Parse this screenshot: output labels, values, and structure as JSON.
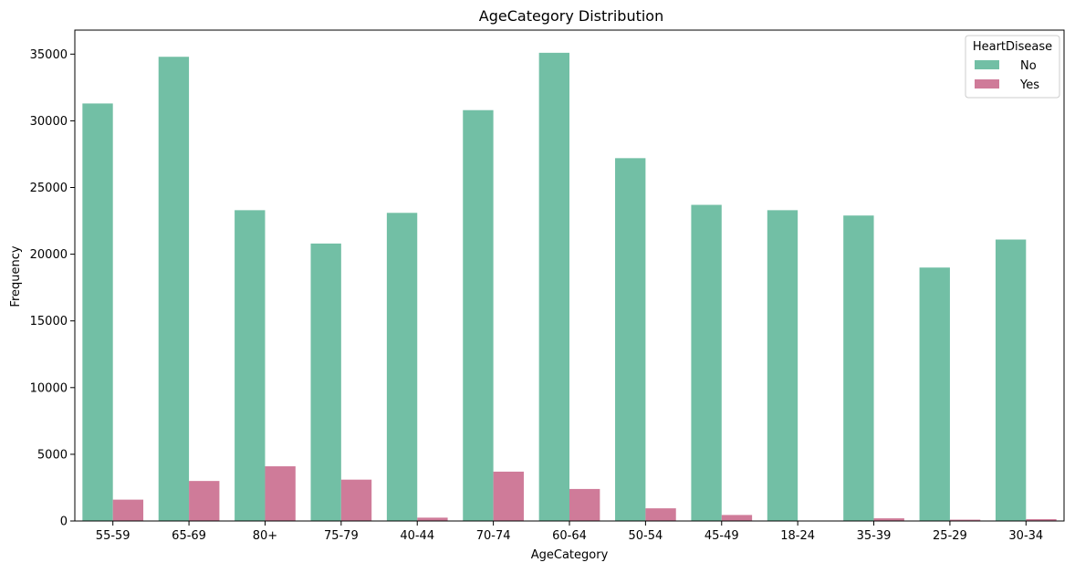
{
  "chart_data": {
    "type": "bar",
    "title": "AgeCategory Distribution",
    "xlabel": "AgeCategory",
    "ylabel": "Frequency",
    "categories": [
      "55-59",
      "65-69",
      "80+",
      "75-79",
      "40-44",
      "70-74",
      "60-64",
      "50-54",
      "45-49",
      "18-24",
      "35-39",
      "25-29",
      "30-34"
    ],
    "series": [
      {
        "name": "No",
        "color": "#72bfa5",
        "values": [
          31300,
          34800,
          23300,
          20800,
          23100,
          30800,
          35100,
          27200,
          23700,
          23300,
          22900,
          19000,
          21100
        ]
      },
      {
        "name": "Yes",
        "color": "#cf7b99",
        "values": [
          1600,
          3000,
          4100,
          3100,
          250,
          3700,
          2400,
          950,
          450,
          30,
          200,
          100,
          140
        ]
      }
    ],
    "ylim": [
      0,
      36800
    ],
    "yticks": [
      0,
      5000,
      10000,
      15000,
      20000,
      25000,
      30000,
      35000
    ],
    "grid": false,
    "legend": {
      "title": "HeartDisease",
      "placement": "top-right"
    }
  }
}
